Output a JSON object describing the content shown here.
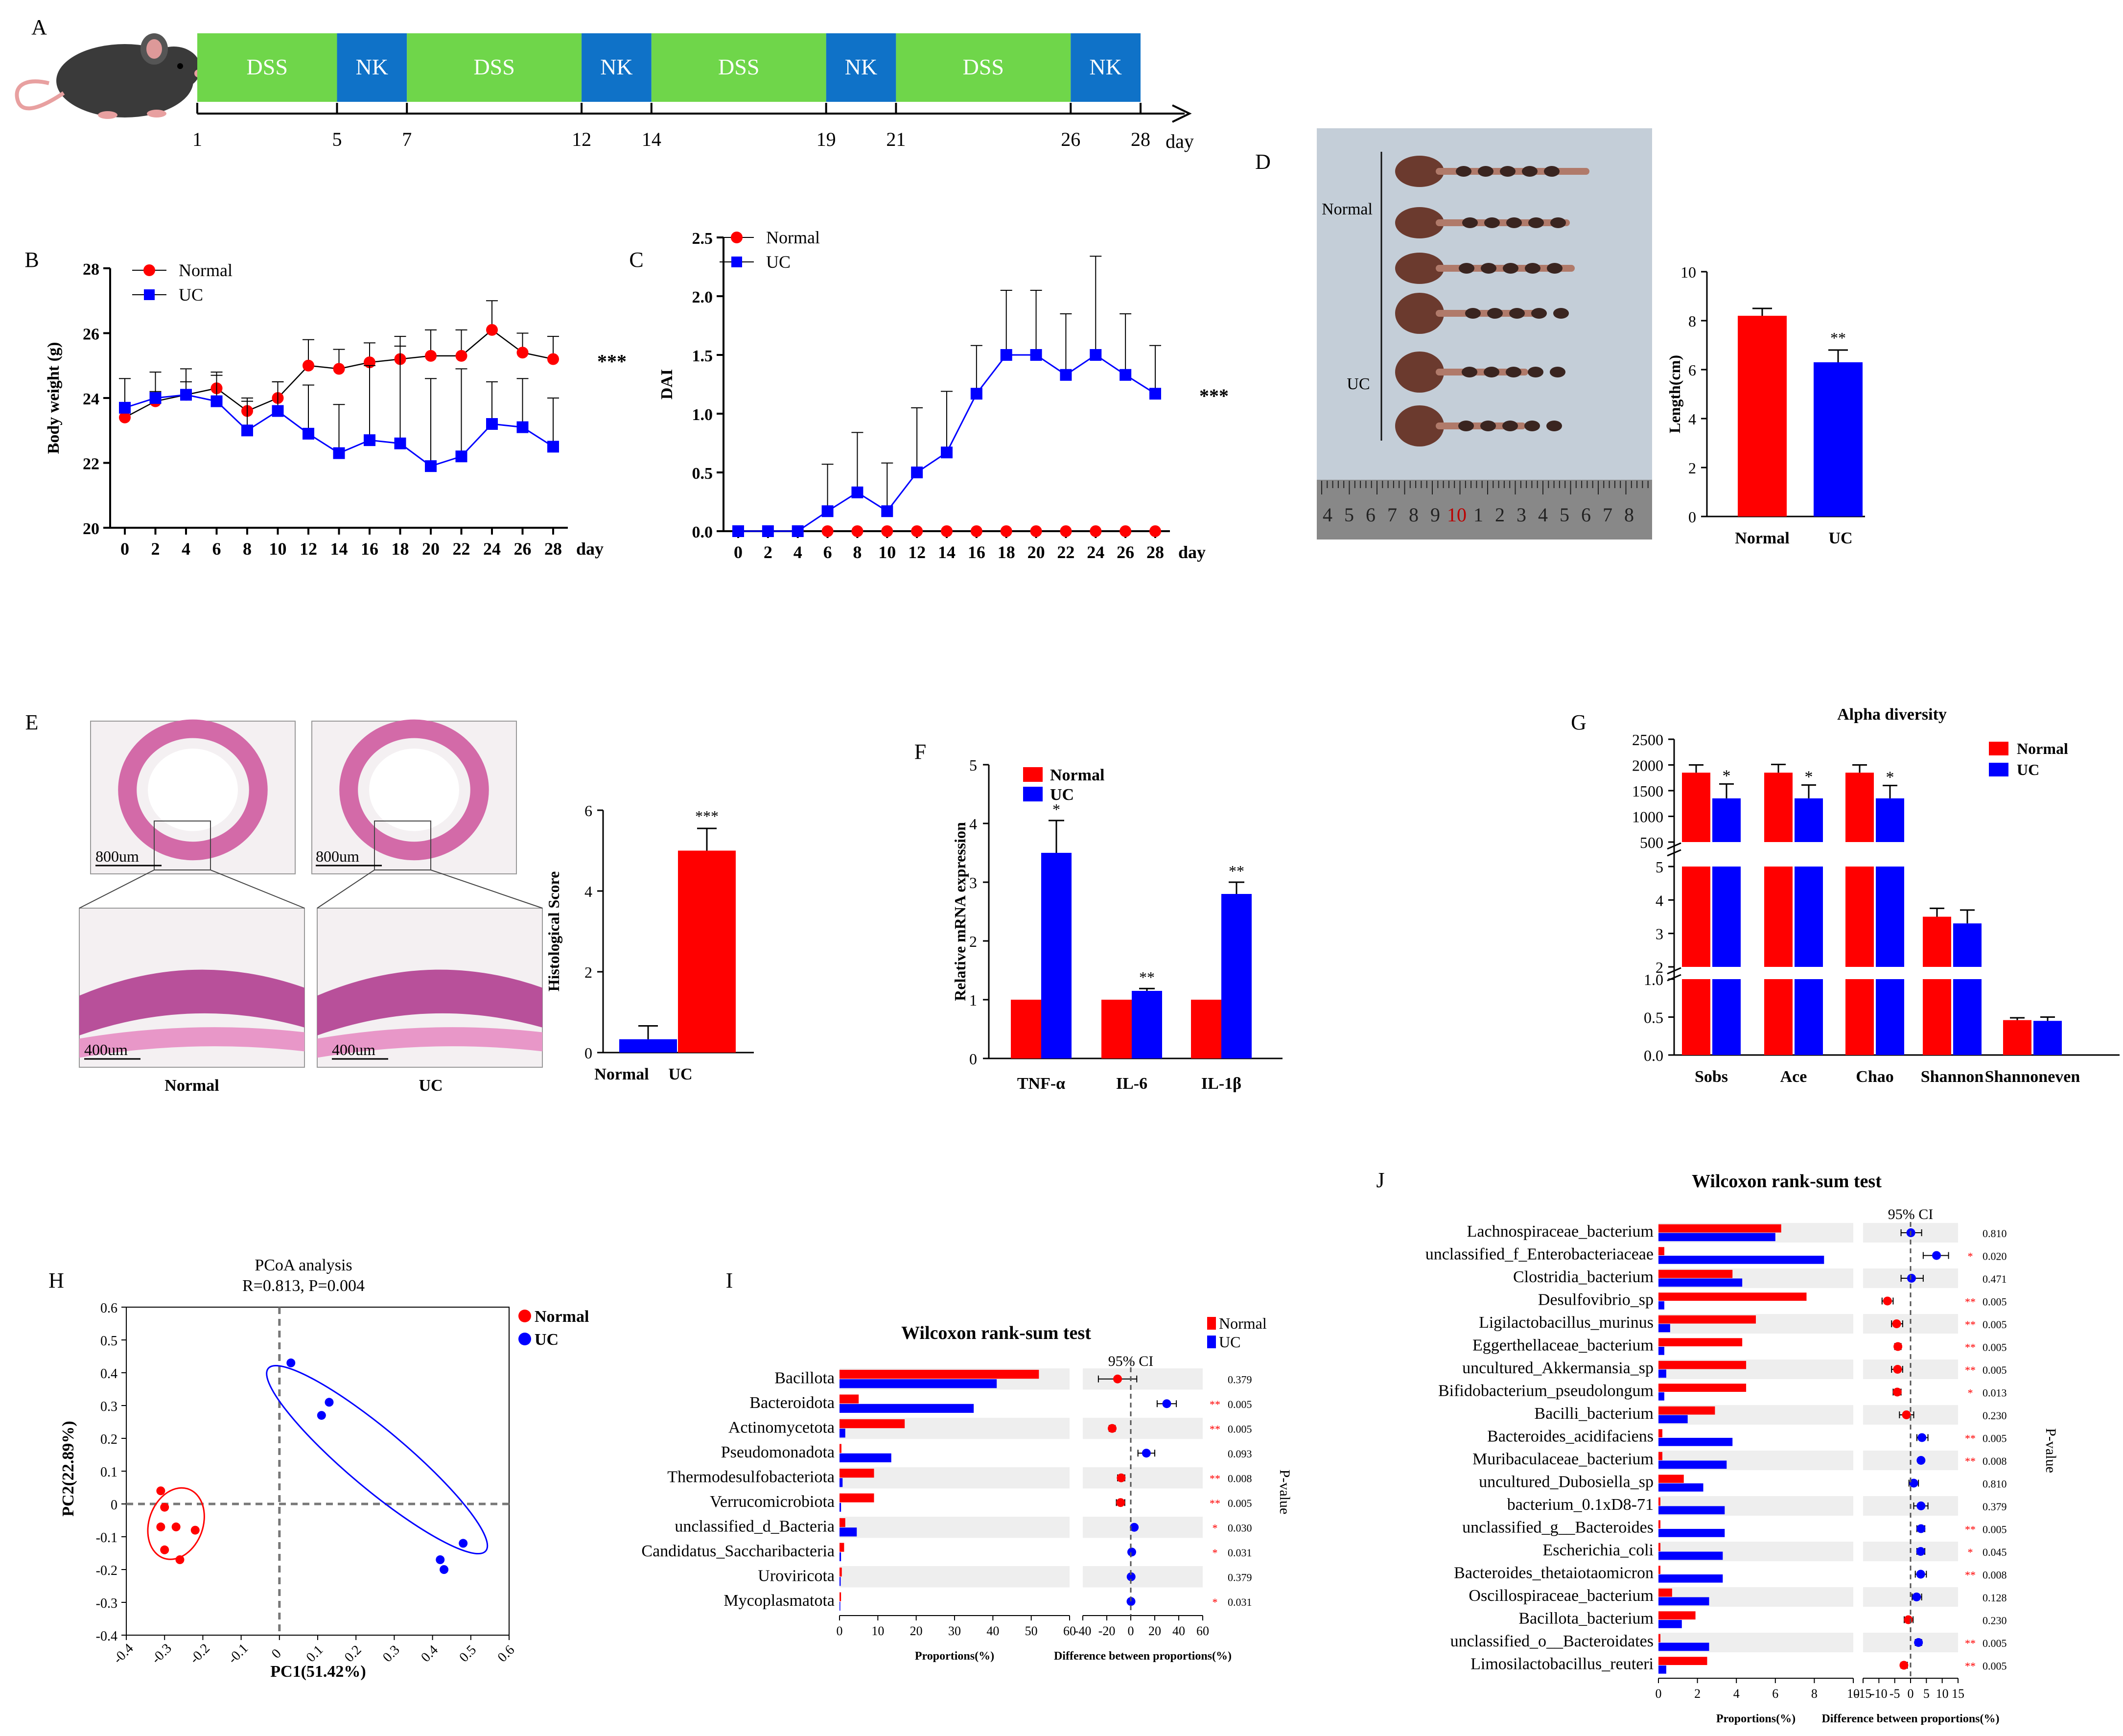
{
  "panel_labels": [
    "A",
    "B",
    "C",
    "D",
    "E",
    "F",
    "G",
    "H",
    "I",
    "J"
  ],
  "colors": {
    "normal": "#ff0000",
    "uc": "#0000ff",
    "dss": "#6fd64a",
    "nk": "#0f72c8",
    "band": "#eeeeee"
  },
  "timeline": {
    "segments": [
      {
        "label": "DSS",
        "from": 1,
        "to": 5
      },
      {
        "label": "NK",
        "from": 5,
        "to": 7
      },
      {
        "label": "DSS",
        "from": 7,
        "to": 12
      },
      {
        "label": "NK",
        "from": 12,
        "to": 14
      },
      {
        "label": "DSS",
        "from": 14,
        "to": 19
      },
      {
        "label": "NK",
        "from": 19,
        "to": 21
      },
      {
        "label": "DSS",
        "from": 21,
        "to": 26
      },
      {
        "label": "NK",
        "from": 26,
        "to": 28
      }
    ],
    "ticks": [
      "1",
      "5",
      "7",
      "12",
      "14",
      "19",
      "21",
      "26",
      "28"
    ],
    "unit": "day"
  },
  "chart_data": [
    {
      "id": "B",
      "type": "line",
      "ylabel": "Body weight (g)",
      "xlabel": "day",
      "x": [
        0,
        2,
        4,
        6,
        8,
        10,
        12,
        14,
        16,
        18,
        20,
        22,
        24,
        26,
        28
      ],
      "ylim": [
        20,
        28
      ],
      "yticks": [
        "20",
        "22",
        "24",
        "26",
        "28"
      ],
      "series": [
        {
          "name": "Normal",
          "values": [
            23.4,
            23.9,
            24.1,
            24.3,
            23.6,
            24.0,
            25.0,
            24.9,
            25.1,
            25.2,
            25.3,
            25.3,
            26.1,
            25.4,
            25.2
          ],
          "err": [
            0.3,
            0.3,
            0.4,
            0.4,
            0.4,
            0.5,
            0.8,
            0.6,
            0.6,
            0.7,
            0.8,
            0.8,
            0.9,
            0.6,
            0.7
          ]
        },
        {
          "name": "UC",
          "values": [
            23.7,
            24.0,
            24.1,
            23.9,
            23.0,
            23.6,
            22.9,
            22.3,
            22.7,
            22.6,
            21.9,
            22.2,
            23.2,
            23.1,
            22.5
          ],
          "err": [
            0.9,
            0.8,
            0.8,
            0.9,
            0.9,
            0.9,
            1.5,
            1.5,
            2.3,
            3.0,
            2.7,
            2.7,
            1.3,
            1.5,
            1.5
          ]
        }
      ],
      "annotation": "***",
      "legend": [
        "Normal",
        "UC"
      ]
    },
    {
      "id": "C",
      "type": "line",
      "ylabel": "DAI",
      "xlabel": "day",
      "x": [
        0,
        2,
        4,
        6,
        8,
        10,
        12,
        14,
        16,
        18,
        20,
        22,
        24,
        26,
        28
      ],
      "ylim": [
        0,
        2.5
      ],
      "yticks": [
        "0.0",
        "0.5",
        "1.0",
        "1.5",
        "2.0",
        "2.5"
      ],
      "series": [
        {
          "name": "Normal",
          "values": [
            0,
            0,
            0,
            0,
            0,
            0,
            0,
            0,
            0,
            0,
            0,
            0,
            0,
            0,
            0
          ]
        },
        {
          "name": "UC",
          "values": [
            0,
            0,
            0,
            0.17,
            0.33,
            0.17,
            0.5,
            0.67,
            1.17,
            1.5,
            1.5,
            1.33,
            1.5,
            1.33,
            1.17
          ],
          "err": [
            0,
            0,
            0,
            0.4,
            0.51,
            0.41,
            0.55,
            0.52,
            0.41,
            0.55,
            0.55,
            0.52,
            0.84,
            0.52,
            0.41
          ]
        }
      ],
      "annotation": "***",
      "legend": [
        "Normal",
        "UC"
      ]
    },
    {
      "id": "D",
      "type": "bar",
      "ylabel": "Length(cm)",
      "categories": [
        "Normal",
        "UC"
      ],
      "values": [
        8.2,
        6.3
      ],
      "err": [
        0.3,
        0.5
      ],
      "ylim": [
        0,
        10
      ],
      "yticks": [
        "0",
        "2",
        "4",
        "6",
        "8",
        "10"
      ],
      "annotation": "**"
    },
    {
      "id": "E",
      "type": "bar",
      "ylabel": "Histological Score",
      "categories": [
        "Normal",
        "UC"
      ],
      "values": [
        0.33,
        5.0
      ],
      "err": [
        0.33,
        0.55
      ],
      "ylim": [
        0,
        6
      ],
      "yticks": [
        "0",
        "2",
        "4",
        "6"
      ],
      "annotation": "***"
    },
    {
      "id": "F",
      "type": "bar",
      "ylabel": "Relative mRNA expression",
      "categories": [
        "TNF-α",
        "IL-6",
        "IL-1β"
      ],
      "series": [
        {
          "name": "Normal",
          "values": [
            1,
            1,
            1
          ]
        },
        {
          "name": "UC",
          "values": [
            3.5,
            1.15,
            2.8
          ],
          "err": [
            0.55,
            0.04,
            0.2
          ]
        }
      ],
      "ylim": [
        0,
        5
      ],
      "yticks": [
        "0",
        "1",
        "2",
        "3",
        "4",
        "5"
      ],
      "annotations": [
        "*",
        "**",
        "**"
      ],
      "legend": [
        "Normal",
        "UC"
      ]
    },
    {
      "id": "G",
      "type": "bar",
      "title": "Alpha diversity",
      "categories": [
        "Sobs",
        "Ace",
        "Chao",
        "Shannon",
        "Shannoneven"
      ],
      "series": [
        {
          "name": "Normal",
          "values": [
            1850,
            1850,
            1850,
            3.5,
            0.46
          ],
          "err": [
            150,
            160,
            150,
            0.25,
            0.03
          ]
        },
        {
          "name": "UC",
          "values": [
            1350,
            1350,
            1350,
            3.3,
            0.45
          ],
          "err": [
            280,
            260,
            250,
            0.4,
            0.05
          ]
        }
      ],
      "segments": [
        {
          "range": [
            500,
            2500
          ],
          "ticks": [
            "500",
            "1000",
            "1500",
            "2000",
            "2500"
          ]
        },
        {
          "range": [
            2,
            5
          ],
          "ticks": [
            "2",
            "3",
            "4",
            "5"
          ]
        },
        {
          "range": [
            0,
            1
          ],
          "ticks": [
            "0.0",
            "0.5",
            "1.0"
          ]
        }
      ],
      "annotations": [
        "*",
        "*",
        "*",
        "",
        ""
      ],
      "legend": [
        "Normal",
        "UC"
      ]
    },
    {
      "id": "H",
      "type": "scatter",
      "title": "PCoA analysis",
      "subtitle": "R=0.813, P=0.004",
      "xlabel": "PC1(51.42%)",
      "ylabel": "PC2(22.89%)",
      "xlim": [
        -0.4,
        0.6
      ],
      "ylim": [
        -0.4,
        0.6
      ],
      "xticks": [
        "-0.4",
        "-0.3",
        "-0.2",
        "-0.1",
        "0",
        "0.1",
        "0.2",
        "0.3",
        "0.4",
        "0.5",
        "0.6"
      ],
      "yticks": [
        "-0.4",
        "-0.3",
        "-0.2",
        "-0.1",
        "0",
        "0.1",
        "0.2",
        "0.3",
        "0.4",
        "0.5",
        "0.6"
      ],
      "series": [
        {
          "name": "Normal",
          "points": [
            [
              -0.31,
              0.04
            ],
            [
              -0.3,
              -0.01
            ],
            [
              -0.31,
              -0.07
            ],
            [
              -0.27,
              -0.07
            ],
            [
              -0.22,
              -0.08
            ],
            [
              -0.3,
              -0.14
            ],
            [
              -0.26,
              -0.17
            ]
          ]
        },
        {
          "name": "UC",
          "points": [
            [
              0.03,
              0.43
            ],
            [
              0.13,
              0.31
            ],
            [
              0.11,
              0.27
            ],
            [
              0.42,
              -0.17
            ],
            [
              0.43,
              -0.2
            ],
            [
              0.48,
              -0.12
            ]
          ]
        }
      ],
      "legend": [
        "Normal",
        "UC"
      ]
    },
    {
      "id": "I",
      "type": "forest",
      "title": "Wilcoxon rank-sum test",
      "ci_label": "95% CI",
      "taxa": [
        "Bacillota",
        "Bacteroidota",
        "Actinomycetota",
        "Pseudomonadota",
        "Thermodesulfobacteriota",
        "Verrucomicrobiota",
        "unclassified_d_Bacteria",
        "Candidatus_Saccharibacteria",
        "Uroviricota",
        "Mycoplasmatota"
      ],
      "normal": [
        52,
        5,
        17,
        0.5,
        9,
        9,
        1.5,
        1.2,
        0.6,
        0.4
      ],
      "uc": [
        41,
        35,
        1.5,
        13.5,
        0.8,
        0.4,
        4.5,
        0.4,
        0.3,
        0.2
      ],
      "diff": [
        -11,
        30,
        -15.5,
        13,
        -8,
        -8.5,
        2.9,
        0.8,
        0.3,
        0.2
      ],
      "ci_low": [
        -27,
        22,
        -18,
        6,
        -11,
        -12,
        1.5,
        0.2,
        -0.4,
        0
      ],
      "ci_high": [
        5,
        38,
        -13,
        20,
        -5,
        -5,
        4.3,
        1.4,
        1.0,
        0.4
      ],
      "sig": [
        "",
        "**",
        "**",
        "",
        "**",
        "**",
        "*",
        "*",
        "",
        "*"
      ],
      "pvalues": [
        "0.379",
        "0.005",
        "0.005",
        "0.093",
        "0.008",
        "0.005",
        "0.030",
        "0.031",
        "0.379",
        "0.031"
      ],
      "prop_ticks": [
        "0",
        "10",
        "20",
        "30",
        "40",
        "50",
        "60"
      ],
      "prop_max": 60,
      "diff_ticks": [
        "-40",
        "-20",
        "0",
        "20",
        "40",
        "60"
      ],
      "diff_min": -40,
      "diff_max": 60,
      "xlabel_prop": "Proportions(%)",
      "xlabel_diff": "Difference between proportions(%)",
      "p_label": "P-value",
      "legend": [
        "Normal",
        "UC"
      ]
    },
    {
      "id": "J",
      "type": "forest",
      "title": "Wilcoxon rank-sum test",
      "ci_label": "95% CI",
      "taxa": [
        "Lachnospiraceae_bacterium",
        "unclassified_f_Enterobacteriaceae",
        "Clostridia_bacterium",
        "Desulfovibrio_sp",
        "Ligilactobacillus_murinus",
        "Eggerthellaceae_bacterium",
        "uncultured_Akkermansia_sp",
        "Bifidobacterium_pseudolongum",
        "Bacilli_bacterium",
        "Bacteroides_acidifaciens",
        "Muribaculaceae_bacterium",
        "uncultured_Dubosiella_sp",
        "bacterium_0.1xD8-71",
        "unclassified_g__Bacteroides",
        "Escherichia_coli",
        "Bacteroides_thetaiotaomicron",
        "Oscillospiraceae_bacterium",
        "Bacillota_bacterium",
        "unclassified_o__Bacteroidates",
        "Limosilactobacillus_reuteri"
      ],
      "normal": [
        6.3,
        0.3,
        3.8,
        7.6,
        5.0,
        4.3,
        4.5,
        4.5,
        2.9,
        0.2,
        0.2,
        1.3,
        0.1,
        0.1,
        0.1,
        0.1,
        0.7,
        1.9,
        0.1,
        2.5
      ],
      "uc": [
        6.0,
        8.5,
        4.3,
        0.3,
        0.6,
        0.3,
        0.4,
        0.3,
        1.5,
        3.8,
        3.5,
        2.3,
        3.4,
        3.4,
        3.3,
        3.3,
        2.6,
        1.2,
        2.6,
        0.4
      ],
      "diff": [
        0.1,
        8.2,
        0.3,
        -7.3,
        -4.4,
        -4.0,
        -4.1,
        -4.2,
        -1.3,
        3.6,
        3.3,
        1.0,
        3.3,
        3.3,
        3.2,
        3.2,
        1.9,
        -0.7,
        2.5,
        -2.1
      ],
      "ci_low": [
        -3,
        4,
        -3,
        -9,
        -6,
        -5,
        -6,
        -5.5,
        -3.5,
        2,
        2.5,
        -0.5,
        1,
        2,
        2,
        1.5,
        0.5,
        -2,
        1.5,
        -3
      ],
      "ci_high": [
        3.5,
        12,
        4,
        -5.5,
        -2.5,
        -3,
        -2.5,
        -3,
        1,
        5.5,
        4,
        2.5,
        5.5,
        4.5,
        4.5,
        5,
        3.5,
        0.8,
        3.5,
        -1
      ],
      "sig": [
        "",
        "*",
        "",
        "**",
        "**",
        "**",
        "**",
        "*",
        "",
        "**",
        "**",
        "",
        "",
        "**",
        "*",
        "**",
        "",
        "",
        "**",
        "**"
      ],
      "pvalues": [
        "0.810",
        "0.020",
        "0.471",
        "0.005",
        "0.005",
        "0.005",
        "0.005",
        "0.013",
        "0.230",
        "0.005",
        "0.008",
        "0.810",
        "0.379",
        "0.005",
        "0.045",
        "0.008",
        "0.128",
        "0.230",
        "0.005",
        "0.005"
      ],
      "prop_ticks": [
        "0",
        "2",
        "4",
        "6",
        "8",
        "10"
      ],
      "prop_max": 10,
      "diff_ticks": [
        "-15",
        "-10",
        "-5",
        "0",
        "5",
        "10",
        "15"
      ],
      "diff_min": -15,
      "diff_max": 15,
      "xlabel_prop": "Proportions(%)",
      "xlabel_diff": "Difference between proportions(%)",
      "p_label": "P-value"
    }
  ],
  "photo_d": {
    "normal_label": "Normal",
    "uc_label": "UC",
    "ruler_digits": [
      "4",
      "5",
      "6",
      "7",
      "8",
      "9",
      "10",
      "1",
      "2",
      "3",
      "4",
      "5",
      "6",
      "7",
      "8"
    ]
  },
  "histology": {
    "scale_top": "800um",
    "scale_bottom": "400um",
    "normal_label": "Normal",
    "uc_label": "UC"
  }
}
